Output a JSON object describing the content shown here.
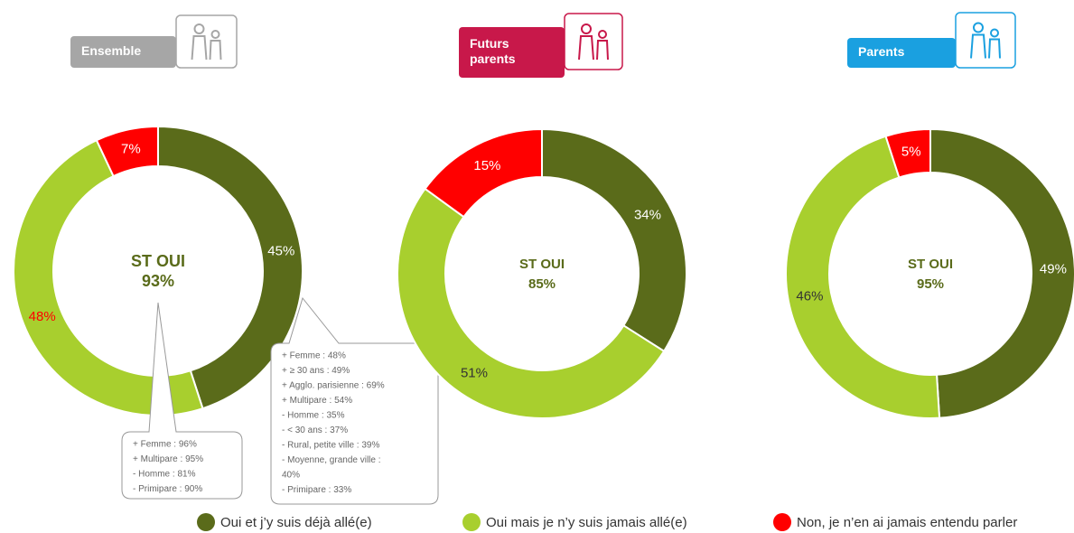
{
  "chart_data": [
    {
      "type": "donut",
      "title_lines": [
        "Ensemble"
      ],
      "center_title": "ST OUI",
      "total": 93,
      "total_label": "93%",
      "values": [
        45,
        48,
        7
      ],
      "value_labels": [
        "45%",
        "48%",
        "7%"
      ],
      "value_label_colors": [
        "#ffffff",
        "#ff0000",
        "#ffffff"
      ],
      "badge_color": "#a6a6a6",
      "callouts": [
        {
          "lines": [
            "+ Femme : 96%",
            "+ Multipare : 95%",
            "- Homme : 81%",
            "- Primipare : 90%"
          ]
        },
        {
          "lines": [
            "+ Femme : 48%",
            "+ ≥ 30 ans : 49%",
            "+ Agglo. parisienne : 69%",
            "+ Multipare : 54%",
            "- Homme : 35%",
            "- < 30 ans : 37%",
            "- Rural, petite ville : 39%",
            "- Moyenne, grande ville :",
            "40%",
            "- Primipare : 33%"
          ]
        }
      ]
    },
    {
      "type": "donut",
      "title_lines": [
        "Futurs",
        "parents"
      ],
      "center_title": "ST OUI",
      "total": 85,
      "total_label": "85%",
      "values": [
        34,
        51,
        15
      ],
      "value_labels": [
        "34%",
        "51%",
        "15%"
      ],
      "value_label_colors": [
        "#ffffff",
        "#333333",
        "#ffffff"
      ],
      "badge_color": "#c8184a"
    },
    {
      "type": "donut",
      "title_lines": [
        "Parents"
      ],
      "center_title": "ST OUI",
      "total": 95,
      "total_label": "95%",
      "values": [
        49,
        46,
        5
      ],
      "value_labels": [
        "49%",
        "46%",
        "5%"
      ],
      "value_label_colors": [
        "#ffffff",
        "#333333",
        "#ffffff"
      ],
      "badge_color": "#1aa0e0"
    }
  ],
  "legend": {
    "labels": [
      "Oui et j’y suis déjà allé(e)",
      "Oui mais je n’y suis jamais allé(e)",
      "Non, je n’en ai jamais entendu parler"
    ],
    "colors": [
      "#5a6b1a",
      "#a8cf2e",
      "#ff0000"
    ]
  }
}
